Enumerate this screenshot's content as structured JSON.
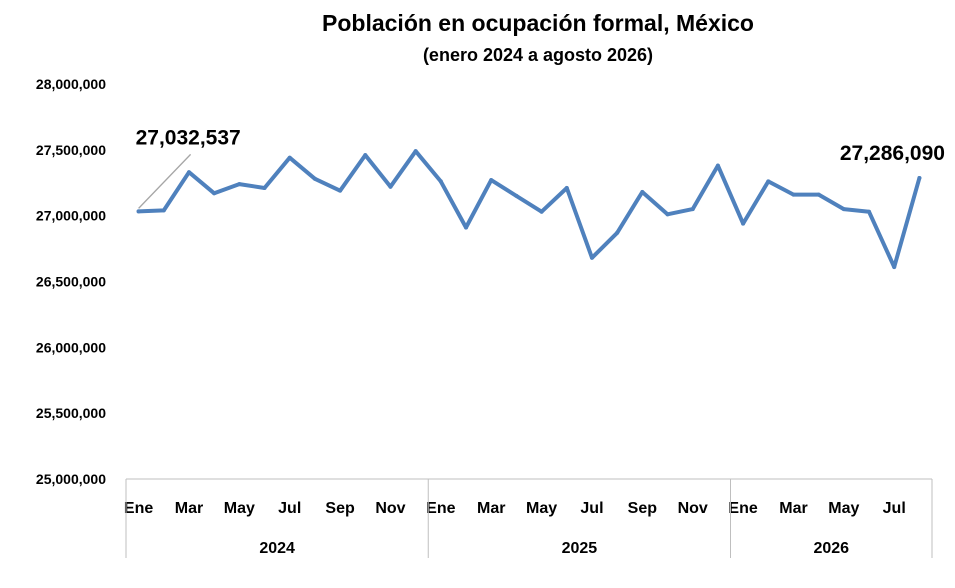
{
  "chart_data": {
    "type": "line",
    "title": "Población en ocupación formal, México",
    "subtitle": "(enero 2024 a agosto 2026)",
    "xlabel": "",
    "ylabel": "",
    "ylim": [
      25000000,
      28000000
    ],
    "yticks": [
      25000000,
      25500000,
      26000000,
      26500000,
      27000000,
      27500000,
      28000000
    ],
    "ytick_labels": [
      "25,000,000",
      "25,500,000",
      "26,000,000",
      "26,500,000",
      "27,000,000",
      "27,500,000",
      "28,000,000"
    ],
    "x_tick_labels": [
      "Ene",
      "",
      "Mar",
      "",
      "May",
      "",
      "Jul",
      "",
      "Sep",
      "",
      "Nov",
      "",
      "Ene",
      "",
      "Mar",
      "",
      "May",
      "",
      "Jul",
      "",
      "Sep",
      "",
      "Nov",
      "",
      "Ene",
      "",
      "Mar",
      "",
      "May",
      "",
      "Jul",
      ""
    ],
    "year_groups": [
      {
        "label": "2024",
        "count": 12
      },
      {
        "label": "2025",
        "count": 12
      },
      {
        "label": "2026",
        "count": 8
      }
    ],
    "series": [
      {
        "color": "#4f81bd",
        "values": [
          27032537,
          27040000,
          27330000,
          27170000,
          27240000,
          27210000,
          27440000,
          27280000,
          27190000,
          27460000,
          27220000,
          27490000,
          27260000,
          26910000,
          27270000,
          27150000,
          27030000,
          27210000,
          26680000,
          26870000,
          27180000,
          27010000,
          27050000,
          27380000,
          26940000,
          27260000,
          27160000,
          27160000,
          27050000,
          27030000,
          26610000,
          27286090
        ]
      }
    ],
    "annotations": [
      {
        "index": 0,
        "text": "27,032,537",
        "leader_line": true
      },
      {
        "index": 31,
        "text": "27,286,090",
        "leader_line": false
      }
    ],
    "grid": false,
    "legend": "none"
  }
}
